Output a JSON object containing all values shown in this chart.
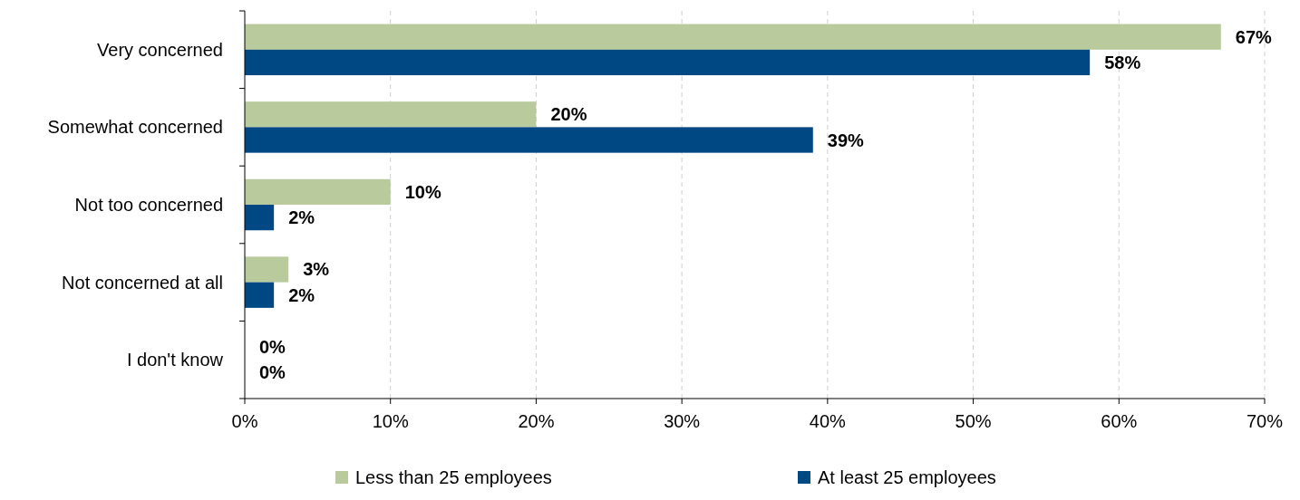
{
  "chart_data": {
    "type": "bar",
    "orientation": "horizontal",
    "categories": [
      "Very concerned",
      "Somewhat concerned",
      "Not too concerned",
      "Not concerned at all",
      "I don't know"
    ],
    "series": [
      {
        "name": "Less than 25 employees",
        "color": "#b9cb9c",
        "values": [
          67,
          20,
          10,
          3,
          0
        ],
        "value_labels": [
          "67%",
          "20%",
          "10%",
          "3%",
          "0%"
        ]
      },
      {
        "name": "At least 25 employees",
        "color": "#004884",
        "values": [
          58,
          39,
          2,
          2,
          0
        ],
        "value_labels": [
          "58%",
          "39%",
          "2%",
          "2%",
          "0%"
        ]
      }
    ],
    "xlim": [
      0,
      70
    ],
    "xticks": [
      {
        "value": 0,
        "label": "0%"
      },
      {
        "value": 10,
        "label": "10%"
      },
      {
        "value": 20,
        "label": "20%"
      },
      {
        "value": 30,
        "label": "30%"
      },
      {
        "value": 40,
        "label": "40%"
      },
      {
        "value": 50,
        "label": "50%"
      },
      {
        "value": 60,
        "label": "60%"
      },
      {
        "value": 70,
        "label": "70%"
      }
    ],
    "grid": "x",
    "legend": "bottom"
  }
}
